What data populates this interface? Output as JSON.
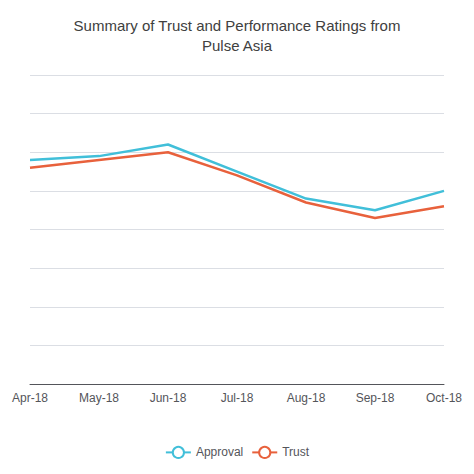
{
  "chart_data": {
    "type": "line",
    "title": "Summary of Trust and Performance Ratings from\nPulse Asia",
    "categories": [
      "Apr-18",
      "May-18",
      "Jun-18",
      "Jul-18",
      "Aug-18",
      "Sep-18",
      "Oct-18"
    ],
    "series": [
      {
        "name": "Approval",
        "color": "#41BFD9",
        "values": [
          78,
          79,
          82,
          75,
          68,
          65,
          70
        ]
      },
      {
        "name": "Trust",
        "color": "#E8613C",
        "values": [
          76,
          78,
          80,
          74,
          67,
          63,
          66
        ]
      }
    ],
    "ylim": [
      20,
      100
    ],
    "yticks": [
      20,
      30,
      40,
      50,
      60,
      70,
      80,
      90,
      100
    ],
    "grid": true,
    "legend": "bottom",
    "tick_labels": "x"
  }
}
